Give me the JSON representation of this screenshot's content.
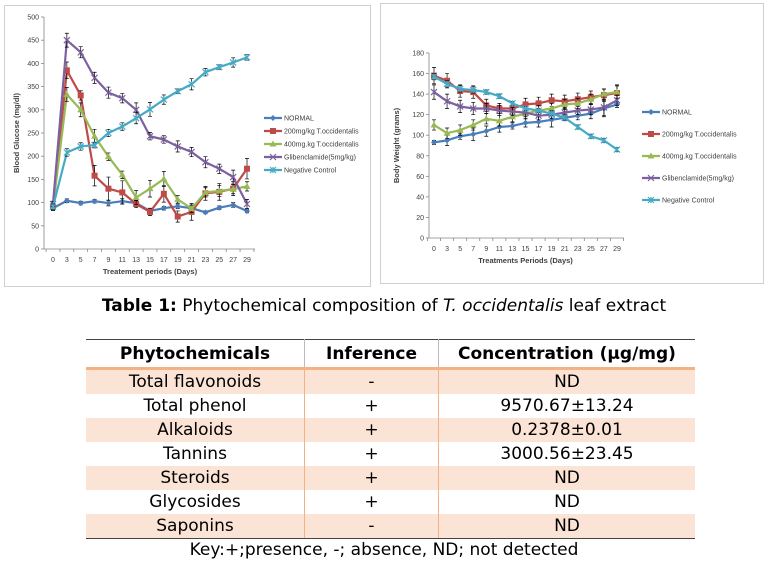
{
  "chart_data": [
    {
      "type": "line",
      "title": "",
      "xlabel": "Treatement periods (Days)",
      "ylabel": "Blood Glucose (mg/dl)",
      "x": [
        0,
        3,
        5,
        7,
        9,
        11,
        13,
        15,
        17,
        19,
        21,
        23,
        25,
        27,
        29
      ],
      "ylim": [
        0,
        500
      ],
      "yticks": [
        0,
        50,
        100,
        150,
        200,
        250,
        300,
        350,
        400,
        450,
        500
      ],
      "grid": false,
      "legend_position": "right",
      "error_bars": true,
      "series": [
        {
          "name": "NORMAL",
          "color": "#4a7ebb",
          "marker": "diamond",
          "values": [
            88,
            104,
            99,
            103,
            99,
            103,
            99,
            82,
            88,
            92,
            88,
            79,
            89,
            95,
            82
          ],
          "errors": [
            5,
            4,
            4,
            4,
            6,
            6,
            5,
            4,
            4,
            5,
            5,
            3,
            4,
            5,
            4
          ]
        },
        {
          "name": "200mg/kg T.occidentalis",
          "color": "#be4b48",
          "marker": "square",
          "values": [
            92,
            385,
            331,
            158,
            130,
            122,
            97,
            80,
            119,
            70,
            80,
            120,
            123,
            130,
            173
          ],
          "errors": [
            8,
            18,
            10,
            22,
            25,
            25,
            8,
            8,
            18,
            12,
            18,
            15,
            18,
            15,
            22
          ]
        },
        {
          "name": "400mg.kg T.occidentalis",
          "color": "#98b954",
          "marker": "triangle",
          "values": [
            90,
            333,
            300,
            243,
            199,
            160,
            111,
            130,
            151,
            107,
            87,
            122,
            125,
            129,
            135
          ],
          "errors": [
            6,
            15,
            15,
            15,
            8,
            8,
            15,
            18,
            16,
            8,
            8,
            10,
            12,
            10,
            10
          ]
        },
        {
          "name": "Glibenclamide(5mg/kg)",
          "color": "#7d60a0",
          "marker": "x",
          "values": [
            97,
            450,
            424,
            369,
            337,
            325,
            300,
            243,
            236,
            221,
            209,
            187,
            173,
            155,
            97
          ],
          "errors": [
            6,
            15,
            12,
            12,
            12,
            10,
            15,
            8,
            8,
            12,
            10,
            12,
            10,
            15,
            10
          ]
        },
        {
          "name": "Negative Control",
          "color": "#46aac5",
          "marker": "star",
          "values": [
            91,
            208,
            221,
            224,
            250,
            264,
            282,
            301,
            322,
            340,
            355,
            381,
            392,
            402,
            413
          ],
          "errors": [
            6,
            8,
            8,
            6,
            8,
            8,
            12,
            15,
            10,
            5,
            12,
            8,
            5,
            10,
            6
          ]
        }
      ]
    },
    {
      "type": "line",
      "title": "",
      "xlabel": "Treatments Periods (Days)",
      "ylabel": "Body Weight (grams)",
      "x": [
        0,
        3,
        5,
        7,
        9,
        11,
        13,
        15,
        17,
        19,
        21,
        23,
        25,
        27,
        29
      ],
      "ylim": [
        0,
        180
      ],
      "yticks": [
        0,
        20,
        40,
        60,
        80,
        100,
        120,
        140,
        160,
        180
      ],
      "grid": false,
      "legend_position": "right",
      "error_bars": true,
      "series": [
        {
          "name": "NORMAL",
          "color": "#4a7ebb",
          "marker": "diamond",
          "values": [
            93,
            95,
            99,
            101,
            104,
            108,
            109,
            112,
            113,
            115,
            117,
            119,
            121,
            126,
            130
          ],
          "errors": [
            2,
            5,
            3,
            6,
            5,
            5,
            3,
            4,
            5,
            7,
            3,
            4,
            5,
            8,
            3
          ]
        },
        {
          "name": "200mg/kg T.occidentalis",
          "color": "#be4b48",
          "marker": "square",
          "values": [
            158,
            153,
            143,
            142,
            129,
            126,
            126,
            130,
            131,
            134,
            133,
            135,
            137,
            139,
            141
          ],
          "errors": [
            8,
            7,
            6,
            6,
            6,
            5,
            6,
            6,
            6,
            6,
            6,
            6,
            6,
            6,
            8
          ]
        },
        {
          "name": "400mg.kg T.occidentalis",
          "color": "#98b954",
          "marker": "triangle",
          "values": [
            110,
            102,
            105,
            110,
            116,
            114,
            118,
            121,
            124,
            126,
            130,
            131,
            135,
            140,
            142
          ],
          "errors": [
            5,
            5,
            5,
            5,
            5,
            5,
            5,
            5,
            5,
            5,
            5,
            5,
            5,
            5,
            6
          ]
        },
        {
          "name": "Glibenclamide(5mg/kg)",
          "color": "#7d60a0",
          "marker": "x",
          "values": [
            142,
            133,
            128,
            126,
            126,
            124,
            123,
            122,
            119,
            120,
            122,
            124,
            125,
            127,
            134
          ],
          "errors": [
            7,
            7,
            6,
            6,
            5,
            5,
            4,
            4,
            4,
            4,
            4,
            4,
            5,
            8,
            5
          ]
        },
        {
          "name": "Negative Control",
          "color": "#46aac5",
          "marker": "star",
          "values": [
            157,
            150,
            145,
            144,
            142,
            138,
            131,
            126,
            124,
            121,
            117,
            108,
            99,
            95,
            86
          ],
          "errors": [
            3,
            3,
            3,
            3,
            2,
            2,
            2,
            2,
            2,
            2,
            2,
            2,
            2,
            2,
            2
          ]
        }
      ]
    }
  ],
  "table": {
    "caption_bold": "Table 1:",
    "caption_pre": " Phytochemical composition of ",
    "caption_italic": "T. occidentalis",
    "caption_post": " leaf extract",
    "headers": [
      "Phytochemicals",
      "Inference",
      "Concentration (µg/mg)"
    ],
    "rows": [
      [
        "Total flavonoids",
        "-",
        "ND"
      ],
      [
        "Total phenol",
        "+",
        "9570.67±13.24"
      ],
      [
        "Alkaloids",
        "+",
        "0.2378±0.01"
      ],
      [
        "Tannins",
        "+",
        "3000.56±23.45"
      ],
      [
        "Steroids",
        "+",
        "ND"
      ],
      [
        "Glycosides",
        "+",
        "ND"
      ],
      [
        "Saponins",
        "-",
        "ND"
      ]
    ],
    "key": "Key:+;presence, -; absence, ND; not detected",
    "shade_color": "#fbe4d5",
    "rule_color": "#f4b183"
  }
}
